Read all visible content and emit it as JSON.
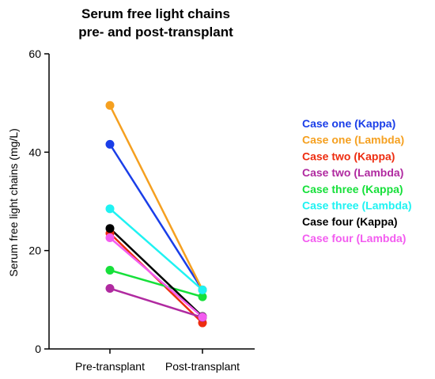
{
  "chart_data": {
    "type": "line",
    "title_lines": [
      "Serum free light chains",
      "pre- and post-transplant"
    ],
    "ylabel": "Serum free light chains (mg/L)",
    "xlabel": "",
    "categories": [
      "Pre-transplant",
      "Post-transplant"
    ],
    "ylim": [
      0,
      60
    ],
    "yticks": [
      0,
      20,
      40,
      60
    ],
    "grid": false,
    "legend_position": "right",
    "series": [
      {
        "name": "Case one (Kappa)",
        "color": "#1a3ee8",
        "values": [
          41.6,
          12.0
        ]
      },
      {
        "name": "Case one (Lambda)",
        "color": "#f5a020",
        "values": [
          49.5,
          12.0
        ]
      },
      {
        "name": "Case two (Kappa)",
        "color": "#ee2d10",
        "values": [
          23.5,
          5.3
        ]
      },
      {
        "name": "Case two (Lambda)",
        "color": "#b02aa0",
        "values": [
          12.3,
          6.4
        ]
      },
      {
        "name": "Case three (Kappa)",
        "color": "#16e03a",
        "values": [
          16.0,
          10.6
        ]
      },
      {
        "name": "Case three (Lambda)",
        "color": "#1ff2f2",
        "values": [
          28.5,
          12.0
        ]
      },
      {
        "name": "Case four (Kappa)",
        "color": "#000000",
        "values": [
          24.5,
          6.6
        ]
      },
      {
        "name": "Case four (Lambda)",
        "color": "#f35cf0",
        "values": [
          22.6,
          6.5
        ]
      }
    ]
  }
}
